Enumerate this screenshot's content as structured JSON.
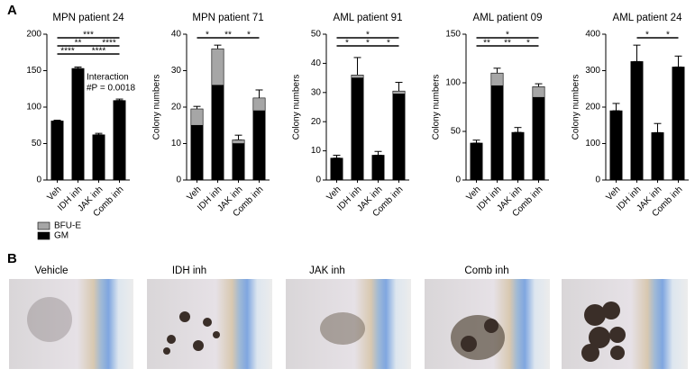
{
  "panel_labels": [
    "A",
    "B"
  ],
  "chart_data": [
    {
      "type": "bar",
      "title": "MPN patient 24",
      "categories": [
        "Veh",
        "IDH inh",
        "JAK inh",
        "Comb inh"
      ],
      "series": [
        {
          "name": "GM",
          "color": "#000000",
          "values": [
            81,
            153,
            62,
            109
          ],
          "errors": [
            1,
            2,
            2,
            2
          ]
        },
        {
          "name": "BFU-E",
          "color": "#a6a6a6",
          "values": [
            0,
            0,
            0,
            0
          ],
          "errors": [
            0,
            0,
            0,
            0
          ]
        }
      ],
      "ylim": [
        0,
        200
      ],
      "yticks": [
        0,
        50,
        100,
        150,
        200
      ],
      "brackets": [
        {
          "label": "****",
          "from": 0,
          "to": 1
        },
        {
          "label": "****",
          "from": 1,
          "to": 3
        },
        {
          "label": "**",
          "from": 0,
          "to": 2
        },
        {
          "label": "****",
          "from": 2,
          "to": 3
        },
        {
          "label": "***",
          "from": 0,
          "to": 3
        }
      ],
      "annotations": [
        "Interaction",
        "#P = 0.0018"
      ]
    },
    {
      "type": "bar",
      "title": "MPN patient 71",
      "ylabel": "Colony numbers",
      "categories": [
        "Veh",
        "IDH inh",
        "JAK inh",
        "Comb inh"
      ],
      "series": [
        {
          "name": "GM",
          "color": "#000000",
          "values": [
            15,
            26,
            10,
            19
          ],
          "errors": [
            3,
            1.5,
            1,
            2.5
          ]
        },
        {
          "name": "BFU-E",
          "color": "#a6a6a6",
          "values": [
            4.5,
            10,
            1,
            3.5
          ],
          "errors": [
            0.7,
            1,
            1.3,
            2.2
          ]
        }
      ],
      "ylim": [
        0,
        40
      ],
      "yticks": [
        0,
        10,
        20,
        30,
        40
      ],
      "brackets": [
        {
          "label": "*",
          "from": 0,
          "to": 1
        },
        {
          "label": "**",
          "from": 1,
          "to": 2
        },
        {
          "label": "*",
          "from": 2,
          "to": 3
        }
      ]
    },
    {
      "type": "bar",
      "title": "AML patient 91",
      "ylabel": "Colony numbers",
      "categories": [
        "Veh",
        "IDH inh",
        "JAK inh",
        "Comb inh"
      ],
      "series": [
        {
          "name": "GM",
          "color": "#000000",
          "values": [
            7.5,
            35,
            8.5,
            29.5
          ],
          "errors": [
            0,
            0,
            0,
            0
          ]
        },
        {
          "name": "BFU-E",
          "color": "#a6a6a6",
          "values": [
            0,
            1,
            0,
            1
          ],
          "errors": [
            1,
            6,
            1.3,
            3
          ]
        }
      ],
      "ylim": [
        0,
        50
      ],
      "yticks": [
        0,
        10,
        20,
        30,
        40,
        50
      ],
      "brackets": [
        {
          "label": "*",
          "from": 0,
          "to": 1
        },
        {
          "label": "*",
          "from": 1,
          "to": 2
        },
        {
          "label": "*",
          "from": 2,
          "to": 3
        },
        {
          "label": "*",
          "from": 0,
          "to": 3
        }
      ]
    },
    {
      "type": "bar",
      "title": "AML patient 09",
      "ylabel": "Colony numbers",
      "categories": [
        "Veh",
        "IDH inh",
        "JAK inh",
        "Comb inh"
      ],
      "series": [
        {
          "name": "GM",
          "color": "#000000",
          "values": [
            38,
            97,
            49,
            85
          ],
          "errors": [
            0,
            0,
            0,
            0
          ]
        },
        {
          "name": "BFU-E",
          "color": "#a6a6a6",
          "values": [
            0,
            13,
            0,
            11
          ],
          "errors": [
            3,
            5,
            5,
            3
          ]
        }
      ],
      "ylim": [
        0,
        150
      ],
      "yticks": [
        0,
        50,
        100,
        150
      ],
      "brackets": [
        {
          "label": "**",
          "from": 0,
          "to": 1
        },
        {
          "label": "**",
          "from": 1,
          "to": 2
        },
        {
          "label": "*",
          "from": 2,
          "to": 3
        },
        {
          "label": "*",
          "from": 0,
          "to": 3
        }
      ]
    },
    {
      "type": "bar",
      "title": "AML patient 24",
      "ylabel": "Colony numbers",
      "categories": [
        "Veh",
        "IDH inh",
        "JAK inh",
        "Comb inh"
      ],
      "series": [
        {
          "name": "GM",
          "color": "#000000",
          "values": [
            190,
            325,
            130,
            310
          ],
          "errors": [
            20,
            45,
            25,
            30
          ]
        },
        {
          "name": "BFU-E",
          "color": "#a6a6a6",
          "values": [
            0,
            0,
            0,
            0
          ],
          "errors": [
            0,
            0,
            0,
            0
          ]
        }
      ],
      "ylim": [
        0,
        400
      ],
      "yticks": [
        0,
        100,
        200,
        300,
        400
      ],
      "brackets": [
        {
          "label": "*",
          "from": 1,
          "to": 2
        },
        {
          "label": "*",
          "from": 2,
          "to": 3
        }
      ]
    }
  ],
  "photos": {
    "captions": [
      "Vehicle",
      "IDH inh",
      "JAK inh",
      "Comb inh"
    ]
  }
}
